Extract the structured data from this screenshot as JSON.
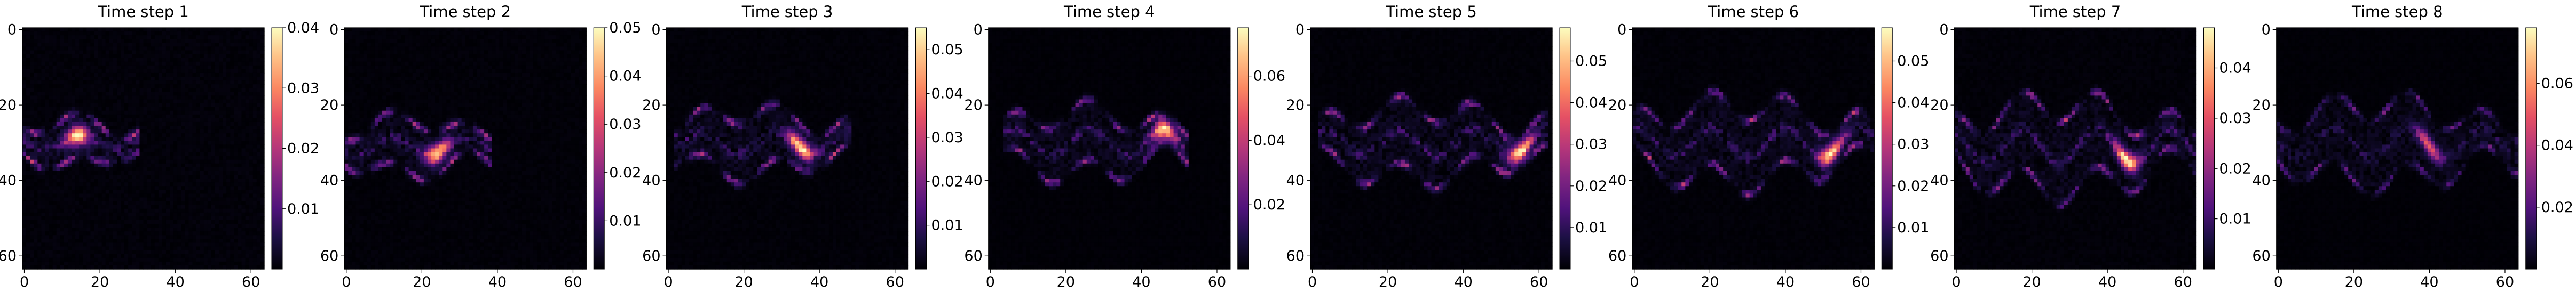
{
  "figure": {
    "panel_count": 8
  },
  "chart_data": [
    {
      "type": "heatmap",
      "title": "Time step 1",
      "colormap": "magma",
      "grid_size": [
        64,
        64
      ],
      "x_ticks": [
        0,
        20,
        40,
        60
      ],
      "y_ticks": [
        0,
        20,
        40,
        60
      ],
      "xlim": [
        -0.5,
        63.5
      ],
      "ylim": [
        63.5,
        -0.5
      ],
      "colorbar": {
        "min": 0,
        "max": 0.04,
        "ticks": [
          0.01,
          0.02,
          0.03,
          0.04
        ],
        "tick_labels": [
          "0.01",
          "0.02",
          "0.03",
          "0.04"
        ]
      },
      "structure": {
        "x_start": 0,
        "x_end": 30,
        "center_row": 30,
        "half_width": 6,
        "wave_amp": 2.0,
        "peak_x": 14,
        "peak_value": 0.038
      }
    },
    {
      "type": "heatmap",
      "title": "Time step 2",
      "colormap": "magma",
      "grid_size": [
        64,
        64
      ],
      "x_ticks": [
        0,
        20,
        40,
        60
      ],
      "y_ticks": [
        0,
        20,
        40,
        60
      ],
      "xlim": [
        -0.5,
        63.5
      ],
      "ylim": [
        63.5,
        -0.5
      ],
      "colorbar": {
        "min": 0,
        "max": 0.05,
        "ticks": [
          0.01,
          0.02,
          0.03,
          0.04,
          0.05
        ],
        "tick_labels": [
          "0.01",
          "0.02",
          "0.03",
          "0.04",
          "0.05"
        ]
      },
      "structure": {
        "x_start": 0,
        "x_end": 38,
        "center_row": 31,
        "half_width": 7,
        "wave_amp": 2.5,
        "peak_x": 24,
        "peak_value": 0.047
      }
    },
    {
      "type": "heatmap",
      "title": "Time step 3",
      "colormap": "magma",
      "grid_size": [
        64,
        64
      ],
      "x_ticks": [
        0,
        20,
        40,
        60
      ],
      "y_ticks": [
        0,
        20,
        40,
        60
      ],
      "xlim": [
        -0.5,
        63.5
      ],
      "ylim": [
        63.5,
        -0.5
      ],
      "colorbar": {
        "min": 0,
        "max": 0.055,
        "ticks": [
          0.01,
          0.02,
          0.03,
          0.04,
          0.05
        ],
        "tick_labels": [
          "0.01",
          "0.02",
          "0.03",
          "0.04",
          "0.05"
        ]
      },
      "structure": {
        "x_start": 2,
        "x_end": 48,
        "center_row": 30,
        "half_width": 8,
        "wave_amp": 3.0,
        "peak_x": 35,
        "peak_value": 0.053
      }
    },
    {
      "type": "heatmap",
      "title": "Time step 4",
      "colormap": "magma",
      "grid_size": [
        64,
        64
      ],
      "x_ticks": [
        0,
        20,
        40,
        60
      ],
      "y_ticks": [
        0,
        20,
        40,
        60
      ],
      "xlim": [
        -0.5,
        63.5
      ],
      "ylim": [
        63.5,
        -0.5
      ],
      "colorbar": {
        "min": 0,
        "max": 0.075,
        "ticks": [
          0.02,
          0.04,
          0.06
        ],
        "tick_labels": [
          "0.02",
          "0.04",
          "0.06"
        ]
      },
      "structure": {
        "x_start": 4,
        "x_end": 52,
        "center_row": 30,
        "half_width": 8,
        "wave_amp": 3.5,
        "peak_x": 46,
        "peak_value": 0.072
      }
    },
    {
      "type": "heatmap",
      "title": "Time step 5",
      "colormap": "magma",
      "grid_size": [
        64,
        64
      ],
      "x_ticks": [
        0,
        20,
        40,
        60
      ],
      "y_ticks": [
        0,
        20,
        40,
        60
      ],
      "xlim": [
        -0.5,
        63.5
      ],
      "ylim": [
        63.5,
        -0.5
      ],
      "colorbar": {
        "min": 0,
        "max": 0.058,
        "ticks": [
          0.01,
          0.02,
          0.03,
          0.04,
          0.05
        ],
        "tick_labels": [
          "0.01",
          "0.02",
          "0.03",
          "0.04",
          "0.05"
        ]
      },
      "structure": {
        "x_start": 2,
        "x_end": 62,
        "center_row": 30,
        "half_width": 9,
        "wave_amp": 3.5,
        "peak_x": 55,
        "peak_value": 0.056
      }
    },
    {
      "type": "heatmap",
      "title": "Time step 6",
      "colormap": "magma",
      "grid_size": [
        64,
        64
      ],
      "x_ticks": [
        0,
        20,
        40,
        60
      ],
      "y_ticks": [
        0,
        20,
        40,
        60
      ],
      "xlim": [
        -0.5,
        63.5
      ],
      "ylim": [
        63.5,
        -0.5
      ],
      "colorbar": {
        "min": 0,
        "max": 0.058,
        "ticks": [
          0.01,
          0.02,
          0.03,
          0.04,
          0.05
        ],
        "tick_labels": [
          "0.01",
          "0.02",
          "0.03",
          "0.04",
          "0.05"
        ]
      },
      "structure": {
        "x_start": 0,
        "x_end": 63,
        "center_row": 30,
        "half_width": 10,
        "wave_amp": 4.0,
        "peak_x": 52,
        "peak_value": 0.055
      }
    },
    {
      "type": "heatmap",
      "title": "Time step 7",
      "colormap": "magma",
      "grid_size": [
        64,
        64
      ],
      "x_ticks": [
        0,
        20,
        40,
        60
      ],
      "y_ticks": [
        0,
        20,
        40,
        60
      ],
      "xlim": [
        -0.5,
        63.5
      ],
      "ylim": [
        63.5,
        -0.5
      ],
      "colorbar": {
        "min": 0,
        "max": 0.048,
        "ticks": [
          0.01,
          0.02,
          0.03,
          0.04
        ],
        "tick_labels": [
          "0.01",
          "0.02",
          "0.03",
          "0.04"
        ]
      },
      "structure": {
        "x_start": 0,
        "x_end": 63,
        "center_row": 31,
        "half_width": 11,
        "wave_amp": 4.5,
        "peak_x": 45,
        "peak_value": 0.046
      }
    },
    {
      "type": "heatmap",
      "title": "Time step 8",
      "colormap": "magma",
      "grid_size": [
        64,
        64
      ],
      "x_ticks": [
        0,
        20,
        40,
        60
      ],
      "y_ticks": [
        0,
        20,
        40,
        60
      ],
      "xlim": [
        -0.5,
        63.5
      ],
      "ylim": [
        63.5,
        -0.5
      ],
      "colorbar": {
        "min": 0,
        "max": 0.078,
        "ticks": [
          0.02,
          0.04,
          0.06
        ],
        "tick_labels": [
          "0.02",
          "0.04",
          "0.06"
        ]
      },
      "structure": {
        "x_start": 0,
        "x_end": 63,
        "center_row": 30,
        "half_width": 10,
        "wave_amp": 4.0,
        "peak_x": 40,
        "peak_value": 0.05
      }
    }
  ]
}
